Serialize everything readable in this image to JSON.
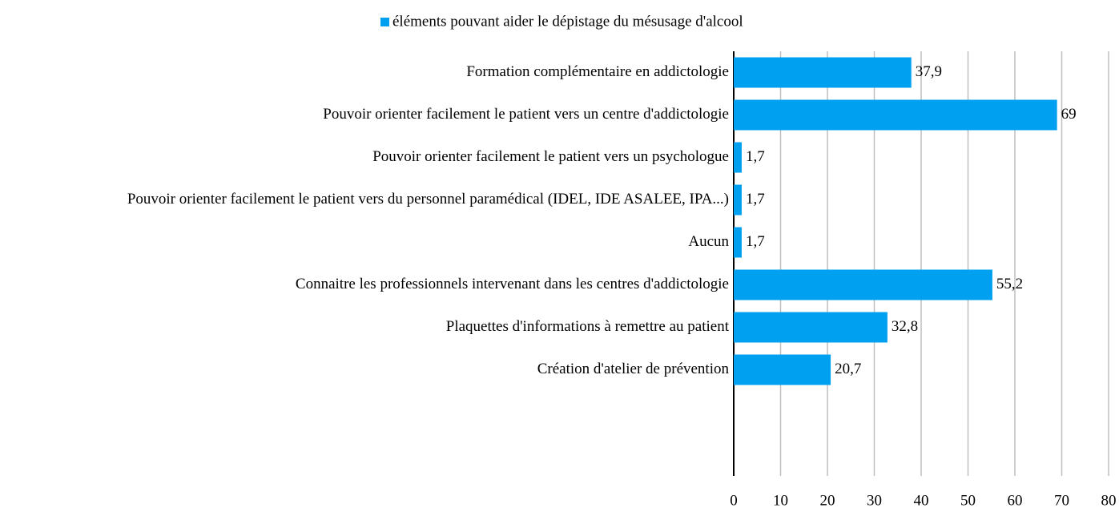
{
  "chart_data": {
    "type": "bar",
    "orientation": "horizontal",
    "legend": "top",
    "series": [
      {
        "name": "éléments pouvant aider le dépistage du mésusage d'alcool",
        "color": "#00a0f0",
        "values": [
          37.9,
          69,
          1.7,
          1.7,
          1.7,
          55.2,
          32.8,
          20.7,
          null,
          null
        ],
        "value_labels": [
          "37,9",
          "69",
          "1,7",
          "1,7",
          "1,7",
          "55,2",
          "32,8",
          "20,7",
          null,
          null
        ]
      }
    ],
    "categories": [
      "Formation complémentaire en addictologie",
      "Pouvoir orienter facilement le patient vers un centre d'addictologie",
      "Pouvoir orienter facilement le patient vers un psychologue",
      "Pouvoir orienter facilement le patient vers du personnel paramédical (IDEL, IDE ASALEE, IPA...)",
      "Aucun",
      "Connaitre les professionnels intervenant dans les centres d'addictologie",
      "Plaquettes d'informations à remettre au patient",
      "Création d'atelier de prévention",
      null,
      null
    ],
    "xlim": [
      0,
      80
    ],
    "xticks": [
      0,
      10,
      20,
      30,
      40,
      50,
      60,
      70,
      80
    ],
    "grid": true
  }
}
